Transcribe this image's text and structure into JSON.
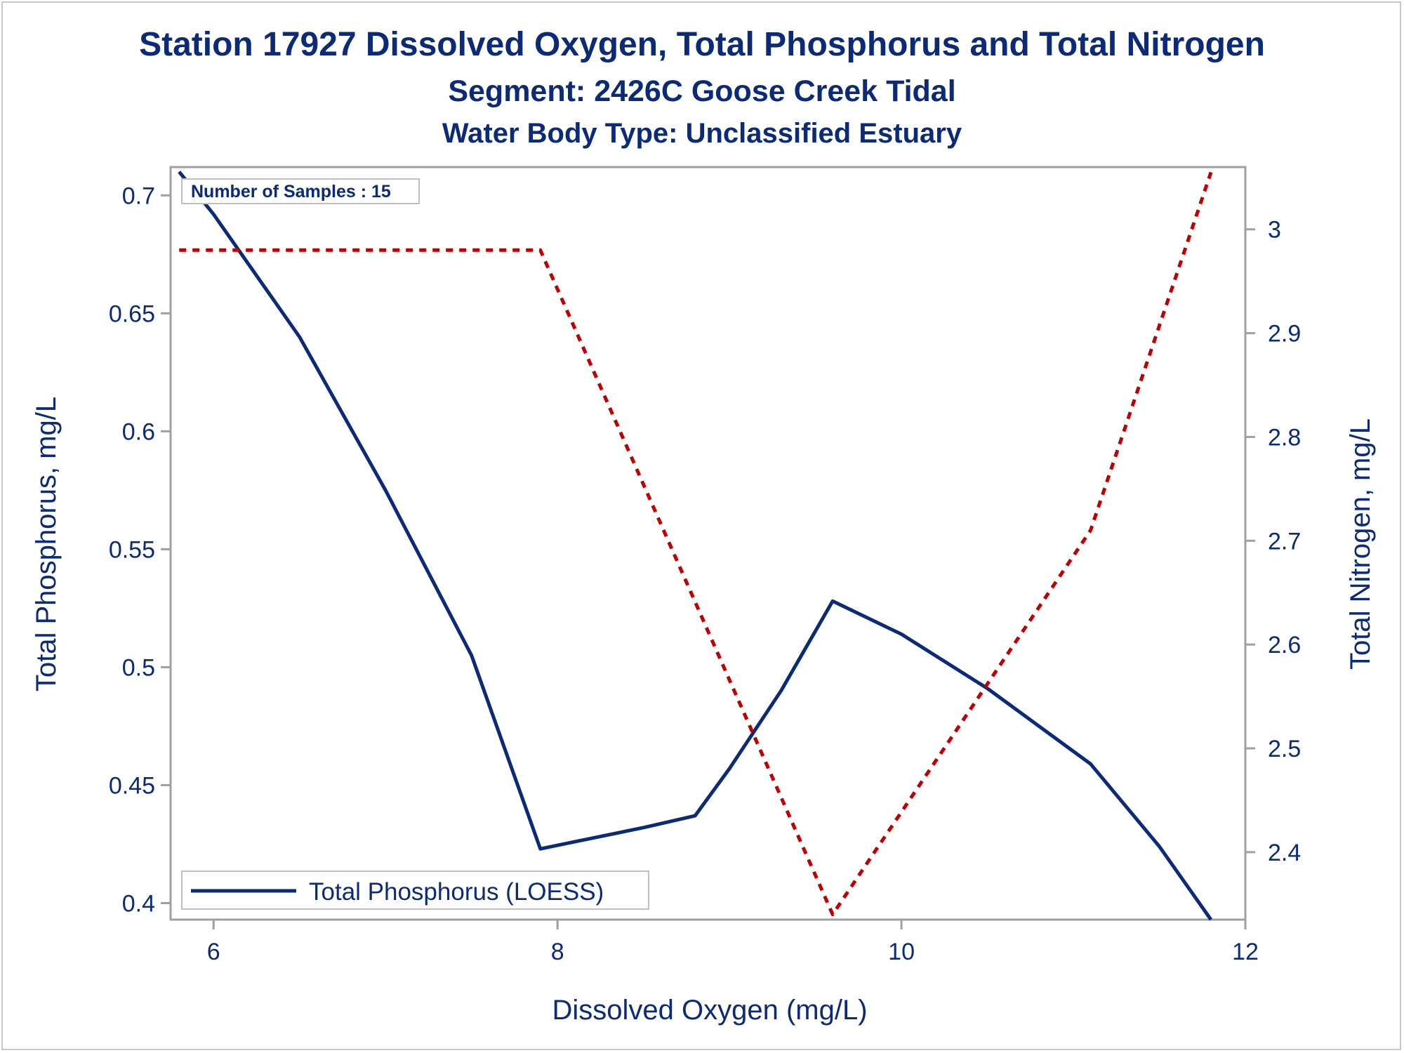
{
  "titles": {
    "line1": "Station 17927  Dissolved Oxygen, Total Phosphorus and Total Nitrogen",
    "line2": "Segment: 2426C  Goose Creek Tidal",
    "line3": "Water Body Type: Unclassified Estuary"
  },
  "annotation": "Number of Samples : 15",
  "colors": {
    "title": "#0b2a78",
    "phosphorus": "#0b2a78",
    "nitrogen": "#c00000",
    "axis": "#a0a0a0"
  },
  "chart_data": {
    "type": "line",
    "xlabel": "Dissolved Oxygen (mg/L)",
    "ylabel": "Total Phosphorus, mg/L",
    "y2label": "Total Nitrogen, mg/L",
    "xlim": [
      5.75,
      12.0
    ],
    "ylim": [
      0.393,
      0.712
    ],
    "y2lim": [
      2.335,
      3.06
    ],
    "x_ticks": [
      "6",
      "8",
      "10",
      "12"
    ],
    "y_ticks": [
      "0.4",
      "0.45",
      "0.5",
      "0.55",
      "0.6",
      "0.65",
      "0.7"
    ],
    "y2_ticks": [
      "2.4",
      "2.5",
      "2.6",
      "2.7",
      "2.8",
      "2.9",
      "3"
    ],
    "legend_position": "bottom-left",
    "grid": false,
    "series": [
      {
        "name": "Total Phosphorus (LOESS)",
        "axis": "left",
        "style": "solid",
        "x": [
          5.8,
          6.0,
          6.5,
          7.0,
          7.5,
          7.9,
          8.1,
          8.5,
          8.8,
          9.0,
          9.3,
          9.6,
          10.0,
          10.5,
          11.1,
          11.5,
          11.8
        ],
        "y": [
          0.71,
          0.692,
          0.64,
          0.575,
          0.505,
          0.423,
          0.426,
          0.432,
          0.437,
          0.457,
          0.49,
          0.528,
          0.514,
          0.491,
          0.459,
          0.424,
          0.393
        ]
      },
      {
        "axis": "right",
        "style": "dashed",
        "x": [
          5.8,
          7.9,
          9.6,
          11.1,
          11.8
        ],
        "y": [
          2.98,
          2.98,
          2.34,
          2.71,
          3.055
        ]
      }
    ]
  }
}
